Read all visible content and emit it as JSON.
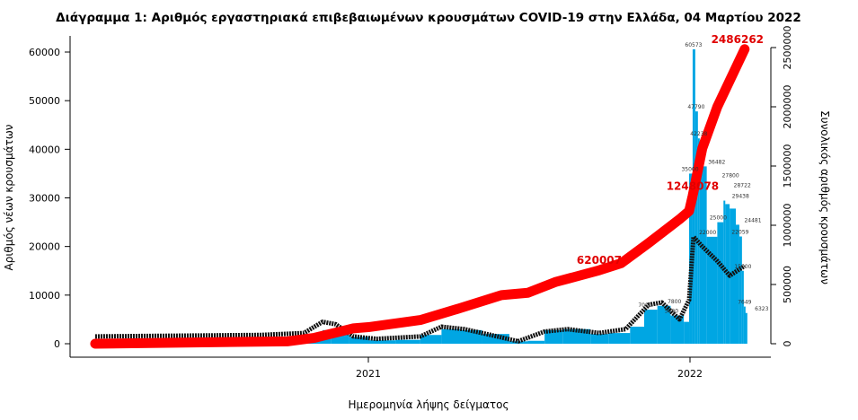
{
  "chart_data": {
    "type": "bar",
    "title": "Διάγραμμα 1: Αριθμός εργαστηριακά επιβεβαιωμένων κρουσμάτων COVID-19 στην Ελλάδα, 04 Μαρτίου 2022",
    "xlabel": "Ημερομηνία λήψης δείγματος",
    "ylabel": "Αριθμός νέων κρουσμάτων",
    "ylabel_right": "Συνολικός αριθμός κρουσμάτων",
    "ylim": [
      0,
      60000
    ],
    "ylim_right": [
      0,
      2500000
    ],
    "yticks": [
      "0",
      "10000",
      "20000",
      "30000",
      "40000",
      "50000",
      "60000"
    ],
    "yticks_right": [
      "0",
      "500000",
      "1000000",
      "1500000",
      "2000000",
      "2500000"
    ],
    "xticks": [
      {
        "date": "2021-01-01",
        "label": "2021"
      },
      {
        "date": "2022-01-01",
        "label": "2022"
      }
    ],
    "xrange": [
      "2020-01-15",
      "2022-03-25"
    ],
    "colors": {
      "bars": "#00a6e3",
      "average": "#111111",
      "cumulative": "#ff0000",
      "cumulative_labels": "#e00000"
    },
    "new_cases": [
      [
        "2020-02-26",
        0
      ],
      [
        "2020-04-01",
        80
      ],
      [
        "2020-06-01",
        20
      ],
      [
        "2020-08-01",
        100
      ],
      [
        "2020-09-01",
        250
      ],
      [
        "2020-10-01",
        400
      ],
      [
        "2020-10-25",
        1500
      ],
      [
        "2020-11-10",
        2800
      ],
      [
        "2020-11-20",
        2500
      ],
      [
        "2020-12-10",
        1400
      ],
      [
        "2021-01-01",
        700
      ],
      [
        "2021-02-01",
        800
      ],
      [
        "2021-03-01",
        1800
      ],
      [
        "2021-03-25",
        3000
      ],
      [
        "2021-04-15",
        2800
      ],
      [
        "2021-05-10",
        2000
      ],
      [
        "2021-06-10",
        500
      ],
      [
        "2021-07-01",
        600
      ],
      [
        "2021-07-20",
        2800
      ],
      [
        "2021-08-10",
        3000
      ],
      [
        "2021-09-10",
        2000
      ],
      [
        "2021-10-01",
        2200
      ],
      [
        "2021-10-25",
        3500
      ],
      [
        "2021-11-10",
        7000
      ],
      [
        "2021-11-25",
        7800
      ],
      [
        "2021-12-10",
        5800
      ],
      [
        "2021-12-25",
        4500
      ],
      [
        "2021-12-31",
        35000
      ],
      [
        "2022-01-04",
        60573
      ],
      [
        "2022-01-07",
        47790
      ],
      [
        "2022-01-10",
        42238
      ],
      [
        "2022-01-12",
        36482
      ],
      [
        "2022-01-20",
        22000
      ],
      [
        "2022-02-01",
        25000
      ],
      [
        "2022-02-08",
        29438
      ],
      [
        "2022-02-10",
        28722
      ],
      [
        "2022-02-15",
        27800
      ],
      [
        "2022-02-22",
        24481
      ],
      [
        "2022-02-26",
        22059
      ],
      [
        "2022-03-01",
        15000
      ],
      [
        "2022-03-03",
        7649
      ],
      [
        "2022-03-04",
        6323
      ]
    ],
    "average": [
      [
        "2020-02-26",
        1500
      ],
      [
        "2020-09-01",
        1800
      ],
      [
        "2020-10-20",
        2200
      ],
      [
        "2020-11-10",
        4500
      ],
      [
        "2020-11-25",
        4000
      ],
      [
        "2020-12-15",
        1500
      ],
      [
        "2021-01-10",
        1000
      ],
      [
        "2021-03-01",
        1500
      ],
      [
        "2021-03-25",
        3500
      ],
      [
        "2021-04-20",
        3000
      ],
      [
        "2021-05-20",
        1800
      ],
      [
        "2021-06-20",
        500
      ],
      [
        "2021-07-20",
        2500
      ],
      [
        "2021-08-15",
        3000
      ],
      [
        "2021-09-20",
        2200
      ],
      [
        "2021-10-20",
        3000
      ],
      [
        "2021-11-15",
        8000
      ],
      [
        "2021-11-30",
        8500
      ],
      [
        "2021-12-20",
        5000
      ],
      [
        "2021-12-31",
        9000
      ],
      [
        "2022-01-05",
        22000
      ],
      [
        "2022-01-15",
        20000
      ],
      [
        "2022-02-01",
        17000
      ],
      [
        "2022-02-15",
        14000
      ],
      [
        "2022-03-04",
        16000
      ]
    ],
    "cumulative": [
      [
        "2020-02-26",
        0
      ],
      [
        "2020-10-01",
        20000
      ],
      [
        "2020-11-01",
        50000
      ],
      [
        "2020-12-15",
        130000
      ],
      [
        "2021-01-01",
        140000
      ],
      [
        "2021-03-01",
        200000
      ],
      [
        "2021-04-15",
        300000
      ],
      [
        "2021-06-01",
        410000
      ],
      [
        "2021-07-01",
        430000
      ],
      [
        "2021-08-01",
        520000
      ],
      [
        "2021-09-20",
        620007
      ],
      [
        "2021-10-15",
        680000
      ],
      [
        "2021-11-15",
        850000
      ],
      [
        "2021-12-20",
        1050000
      ],
      [
        "2021-12-31",
        1120000
      ],
      [
        "2022-01-04",
        1248078
      ],
      [
        "2022-01-15",
        1650000
      ],
      [
        "2022-02-01",
        2000000
      ],
      [
        "2022-03-04",
        2486262
      ]
    ],
    "cumulative_labels": [
      [
        "2021-09-20",
        "620007"
      ],
      [
        "2022-01-04",
        "1248078"
      ],
      [
        "2022-03-04",
        "2486262"
      ]
    ]
  }
}
